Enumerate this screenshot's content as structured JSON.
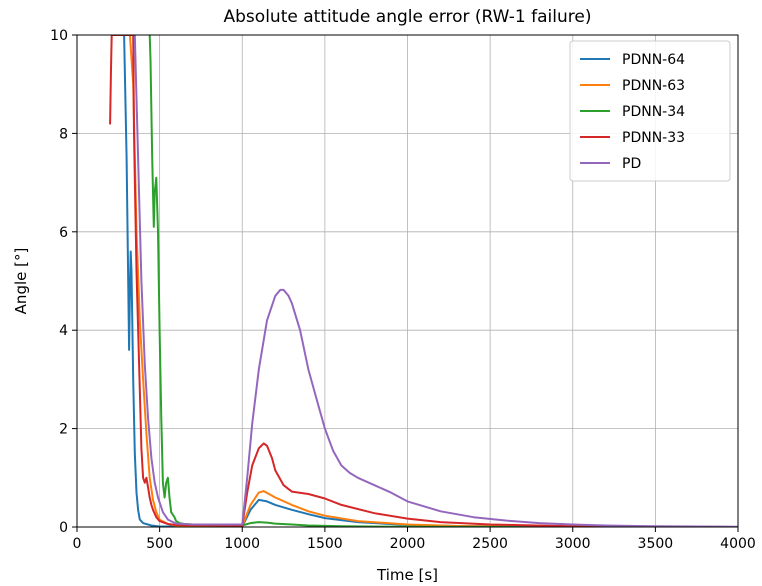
{
  "chart_data": {
    "type": "line",
    "title": "Absolute attitude angle error (RW-1 failure)",
    "xlabel": "Time [s]",
    "ylabel": "Angle [°]",
    "xlim": [
      0,
      4000
    ],
    "ylim": [
      0,
      10
    ],
    "xticks": [
      0,
      500,
      1000,
      1500,
      2000,
      2500,
      3000,
      3500,
      4000
    ],
    "yticks": [
      0,
      2,
      4,
      6,
      8,
      10
    ],
    "grid": true,
    "legend_position": "top-right",
    "series": [
      {
        "name": "PDNN-64",
        "color": "#1f77b4",
        "x": [
          285,
          300,
          310,
          315,
          320,
          325,
          330,
          340,
          350,
          360,
          370,
          380,
          400,
          450,
          500,
          1000,
          1050,
          1100,
          1150,
          1200,
          1300,
          1400,
          1500,
          1700,
          2000,
          2300,
          2600,
          3000,
          4000
        ],
        "y": [
          10,
          7.5,
          5.0,
          3.6,
          4.8,
          5.6,
          5.2,
          3.0,
          1.5,
          0.7,
          0.35,
          0.15,
          0.08,
          0.03,
          0.01,
          0.01,
          0.35,
          0.55,
          0.52,
          0.45,
          0.35,
          0.26,
          0.18,
          0.1,
          0.04,
          0.02,
          0.01,
          0.005,
          0.0
        ]
      },
      {
        "name": "PDNN-63",
        "color": "#ff7f0e",
        "x": [
          300,
          320,
          340,
          360,
          380,
          400,
          420,
          440,
          460,
          480,
          500,
          550,
          600,
          1000,
          1050,
          1100,
          1130,
          1200,
          1300,
          1400,
          1500,
          1700,
          2000,
          2300,
          2600,
          3000,
          4000
        ],
        "y": [
          10,
          10,
          9.0,
          6.0,
          4.2,
          3.0,
          1.9,
          1.0,
          0.55,
          0.3,
          0.15,
          0.06,
          0.03,
          0.02,
          0.45,
          0.7,
          0.73,
          0.6,
          0.45,
          0.32,
          0.23,
          0.12,
          0.05,
          0.02,
          0.01,
          0.005,
          0.0
        ]
      },
      {
        "name": "PDNN-34",
        "color": "#2ca02c",
        "x": [
          440,
          445,
          455,
          465,
          470,
          480,
          490,
          500,
          510,
          520,
          530,
          540,
          550,
          560,
          570,
          580,
          590,
          600,
          620,
          650,
          700,
          1000,
          1050,
          1100,
          1150,
          1200,
          1300,
          1400,
          1600,
          2000,
          2500,
          4000
        ],
        "y": [
          10,
          9.5,
          7.5,
          6.1,
          6.8,
          7.1,
          6.0,
          4.0,
          2.2,
          0.9,
          0.6,
          0.9,
          1.0,
          0.6,
          0.3,
          0.25,
          0.2,
          0.12,
          0.08,
          0.06,
          0.05,
          0.03,
          0.08,
          0.1,
          0.09,
          0.07,
          0.05,
          0.03,
          0.015,
          0.005,
          0.002,
          0.0
        ]
      },
      {
        "name": "PDNN-33",
        "color": "#d62728",
        "x": [
          200,
          205,
          210,
          215,
          220,
          340,
          345,
          360,
          380,
          390,
          400,
          410,
          420,
          430,
          440,
          450,
          460,
          480,
          500,
          550,
          600,
          1000,
          1030,
          1060,
          1100,
          1130,
          1150,
          1180,
          1200,
          1250,
          1300,
          1400,
          1500,
          1600,
          1800,
          2000,
          2200,
          2500,
          3000,
          3500,
          4000
        ],
        "y": [
          8.2,
          9.2,
          10,
          10,
          10,
          10,
          8.0,
          5.2,
          2.8,
          1.6,
          1.0,
          0.9,
          1.0,
          0.8,
          0.6,
          0.45,
          0.35,
          0.2,
          0.12,
          0.06,
          0.04,
          0.03,
          0.7,
          1.25,
          1.6,
          1.7,
          1.65,
          1.4,
          1.15,
          0.85,
          0.72,
          0.67,
          0.58,
          0.45,
          0.28,
          0.17,
          0.1,
          0.05,
          0.015,
          0.005,
          0.0
        ]
      },
      {
        "name": "PD",
        "color": "#9467bd",
        "x": [
          350,
          370,
          390,
          410,
          430,
          450,
          470,
          490,
          520,
          550,
          600,
          700,
          1000,
          1030,
          1060,
          1100,
          1150,
          1200,
          1230,
          1250,
          1280,
          1300,
          1350,
          1400,
          1450,
          1500,
          1550,
          1600,
          1650,
          1700,
          1800,
          1900,
          2000,
          2200,
          2400,
          2600,
          2800,
          3000,
          3200,
          3500,
          4000
        ],
        "y": [
          10,
          7.5,
          5.0,
          3.3,
          2.2,
          1.4,
          0.9,
          0.6,
          0.3,
          0.15,
          0.07,
          0.05,
          0.05,
          1.0,
          2.1,
          3.2,
          4.2,
          4.7,
          4.82,
          4.82,
          4.7,
          4.55,
          4.0,
          3.2,
          2.6,
          2.0,
          1.55,
          1.25,
          1.1,
          1.0,
          0.85,
          0.7,
          0.52,
          0.32,
          0.2,
          0.13,
          0.08,
          0.05,
          0.03,
          0.015,
          0.005
        ]
      }
    ]
  }
}
